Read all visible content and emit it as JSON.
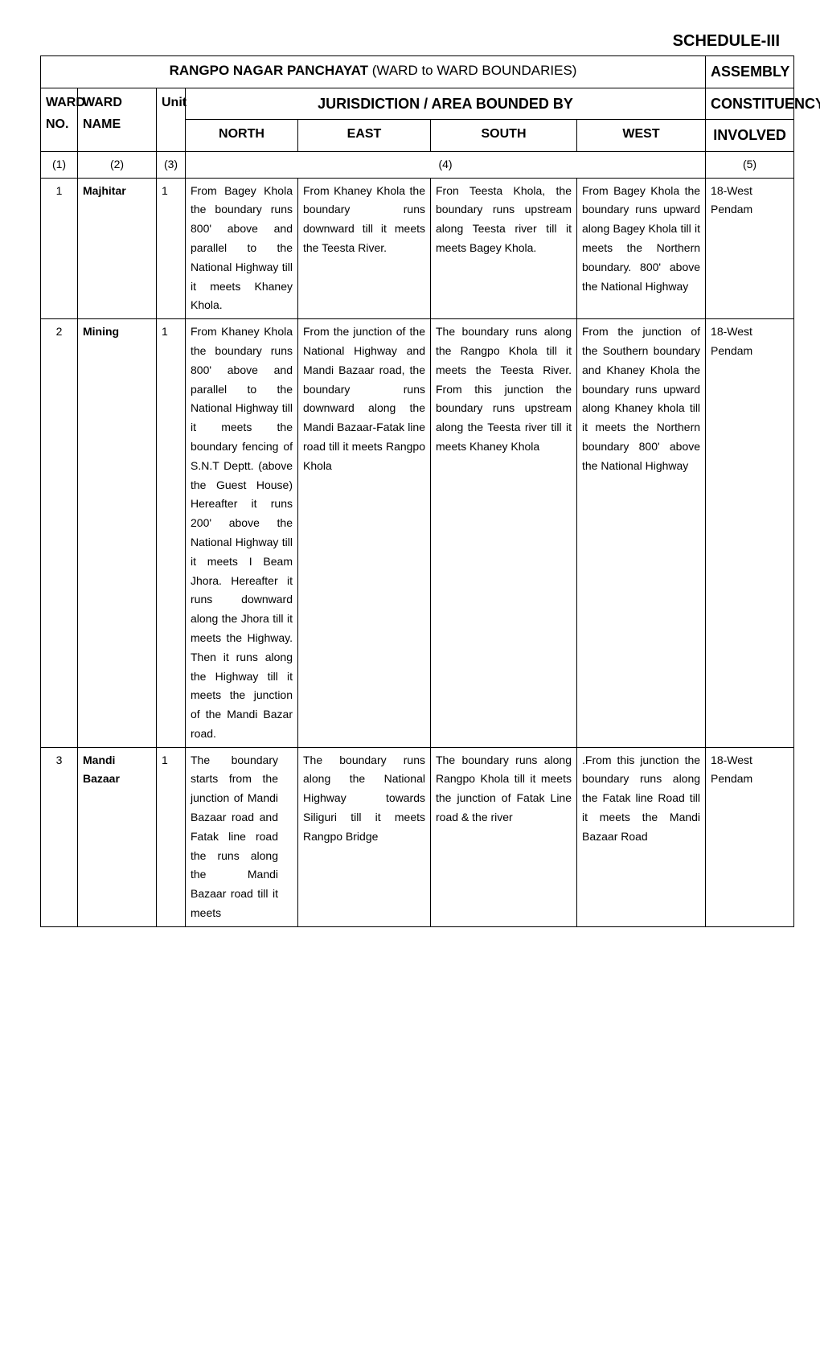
{
  "schedule_label": "SCHEDULE-III",
  "main_title_strong": "RANGPO NAGAR PANCHAYAT",
  "main_title_rest": " (WARD to WARD BOUNDARIES)",
  "headers": {
    "ward_no": "WARD NO.",
    "ward_name": "WARD NAME",
    "unit": "Unit",
    "jurisdiction": "JURISDICTION / AREA BOUNDED BY",
    "assembly_line1": "ASSEMBLY",
    "assembly_line2": "CONSTITUENCY",
    "assembly_line3": "INVOLVED",
    "north": "NORTH",
    "east": "EAST",
    "south": "SOUTH",
    "west": "WEST"
  },
  "colnums": {
    "c1": "(1)",
    "c2": "(2)",
    "c3": "(3)",
    "c4": "(4)",
    "c5": "(5)"
  },
  "rows": [
    {
      "no": "1",
      "name": "Majhitar",
      "unit": "1",
      "north": "From Bagey Khola the boundary runs 800' above and parallel to the National Highway till it meets Khaney Khola.",
      "east": "From Khaney Khola the boundary runs downward till it meets the Teesta River.",
      "south": "Fron Teesta Khola, the boundary runs upstream along Teesta river till it meets Bagey Khola.",
      "west": "From Bagey Khola the boundary runs upward along Bagey Khola till it meets the Northern boundary. 800' above the  National Highway",
      "assembly": "18-West Pendam"
    },
    {
      "no": "2",
      "name": "Mining",
      "unit": "1",
      "north": "From Khaney Khola the boundary runs 800' above and parallel to the National Highway till it meets the boundary fencing of S.N.T Deptt. (above the Guest House) Hereafter it runs 200' above the National Highway till it meets I Beam Jhora. Hereafter it runs downward along the Jhora till it meets the Highway. Then it runs along the Highway till it meets the junction of the Mandi Bazar road.",
      "east": "From the junction of the National Highway and Mandi Bazaar road, the boundary runs downward along the Mandi Bazaar-Fatak line road till it meets Rangpo Khola",
      "south": "The boundary runs along the Rangpo Khola till it meets the Teesta River. From this junction the boundary runs upstream along the Teesta river till it meets Khaney Khola",
      "west": "From the junction of the Southern boundary and Khaney Khola the boundary runs upward along Khaney khola till it meets the Northern boundary 800' above the National Highway",
      "assembly": "18-West Pendam"
    },
    {
      "no": "3",
      "name": "Mandi Bazaar",
      "unit": "1",
      "north": "The boundary starts from the junction of Mandi Bazaar road and Fatak line road the runs along the Mandi Bazaar road till it meets",
      "east": "The boundary runs along the National Highway towards Siliguri till it meets Rangpo Bridge",
      "south": "The boundary runs along Rangpo Khola till it meets the junction of Fatak Line road & the river",
      "west": ".From this junction the boundary runs along the Fatak line Road till it meets the Mandi Bazaar Road",
      "assembly": "18-West Pendam"
    }
  ]
}
